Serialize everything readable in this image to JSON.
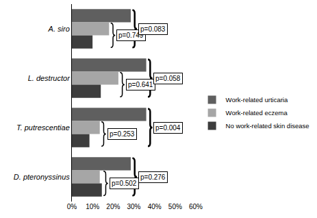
{
  "chart_data": {
    "type": "bar",
    "orientation": "horizontal",
    "categories": [
      "A. siro",
      "L. destructor",
      "T. putrescentiae",
      "D. pteronyssinus"
    ],
    "series": [
      {
        "name": "Work-related urticaria",
        "color": "#5f5f5f",
        "values": [
          28.5,
          36,
          36,
          28.5
        ]
      },
      {
        "name": "Work-related eczema",
        "color": "#a6a6a6",
        "values": [
          18,
          22.5,
          13.5,
          13.5
        ]
      },
      {
        "name": "No work-related skin disease",
        "color": "#3d3d3d",
        "values": [
          10,
          14,
          8.5,
          14.5
        ]
      }
    ],
    "xlim": [
      0,
      60
    ],
    "xticks": [
      {
        "value": 0,
        "label": "0%"
      },
      {
        "value": 10,
        "label": "10%"
      },
      {
        "value": 20,
        "label": "20%"
      },
      {
        "value": 30,
        "label": "30%"
      },
      {
        "value": 40,
        "label": "40%"
      },
      {
        "value": 50,
        "label": "50%"
      },
      {
        "value": 60,
        "label": "60%"
      }
    ],
    "grid": false,
    "legend": "right",
    "annotations": [
      {
        "text": "p=0.749",
        "category": "A. siro",
        "series": [
          "Work-related eczema",
          "No work-related skin disease"
        ]
      },
      {
        "text": "p=0.083",
        "category": "A. siro",
        "series": [
          "Work-related urticaria",
          "No work-related skin disease"
        ]
      },
      {
        "text": "p=0.641",
        "category": "L. destructor",
        "series": [
          "Work-related eczema",
          "No work-related skin disease"
        ]
      },
      {
        "text": "p=0.058",
        "category": "L. destructor",
        "series": [
          "Work-related urticaria",
          "No work-related skin disease"
        ]
      },
      {
        "text": "p=0.253",
        "category": "T. putrescentiae",
        "series": [
          "Work-related eczema",
          "No work-related skin disease"
        ]
      },
      {
        "text": "p=0.004",
        "category": "T. putrescentiae",
        "series": [
          "Work-related urticaria",
          "No work-related skin disease"
        ]
      },
      {
        "text": "p=0.502",
        "category": "D. pteronyssinus",
        "series": [
          "Work-related eczema",
          "No work-related skin disease"
        ]
      },
      {
        "text": "p=0.276",
        "category": "D. pteronyssinus",
        "series": [
          "Work-related urticaria",
          "No work-related skin disease"
        ]
      }
    ]
  }
}
